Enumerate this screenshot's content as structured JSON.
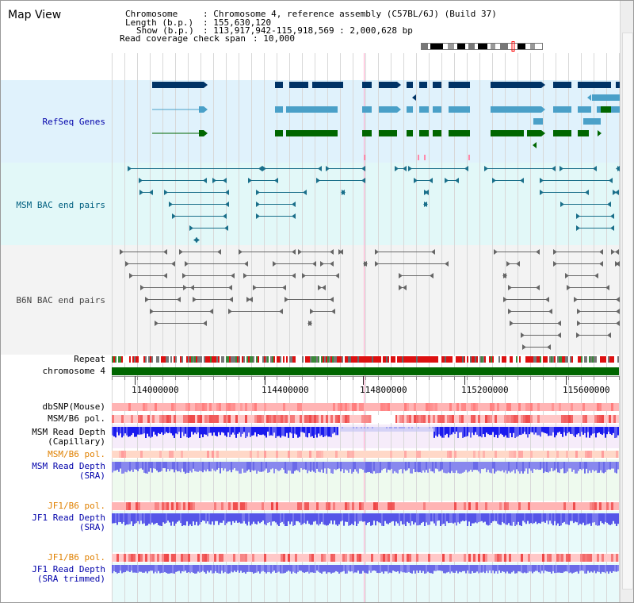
{
  "app_title": "Map View",
  "info": {
    "chromosome_key": "Chromosome",
    "chromosome_val": ": Chromosome 4, reference assembly (C57BL/6J) (Build 37)",
    "length_key": "Length (b.p.)",
    "length_val": ": 155,630,120",
    "show_key": "Show (b.p.)",
    "show_val": ": 113,917,942-115,918,569 : 2,000,628 bp",
    "coverage_key": "Read coverage check span",
    "coverage_val": ": 10,000"
  },
  "tracks": {
    "refseq": "RefSeq Genes",
    "msm_bac": "MSM BAC end pairs",
    "b6n_bac": "B6N BAC end pairs",
    "repeat": "Repeat",
    "chromosome": "chromosome 4",
    "dbsnp": "dbSNP(Mouse)",
    "msm_b6_pol": "MSM/B6 pol.",
    "msm_depth_cap_1": "MSM Read Depth",
    "msm_depth_cap_2": "(Capillary)",
    "msm_b6_pol2": "MSM/B6 pol.",
    "msm_depth_sra_1": "MSM Read Depth",
    "msm_depth_sra_2": "(SRA)",
    "jf1_b6_pol": "JF1/B6 pol.",
    "jf1_depth_sra_1": "JF1 Read Depth",
    "jf1_depth_sra_2": "(SRA)",
    "jf1_b6_pol2": "JF1/B6 pol.",
    "jf1_depth_trim_1": "JF1 Read Depth",
    "jf1_depth_trim_2": "(SRA trimmed)"
  },
  "axis": {
    "ticks": [
      "114000000",
      "114400000",
      "114800000",
      "115200000",
      "115600000"
    ]
  },
  "colors": {
    "refseq_band": "#e0f2fc",
    "msm_band": "#e2f8f8",
    "b6n_band": "#f3f3f3",
    "gene_navy": "#003366",
    "gene_teal": "#4aa0c8",
    "gene_green": "#006600",
    "chromosome_bar": "#006600",
    "depth_blue": "#1a1aee",
    "depth_light": "#8888ee",
    "pol_red": "#ee4444",
    "pol_pink": "#ffb4b4"
  }
}
